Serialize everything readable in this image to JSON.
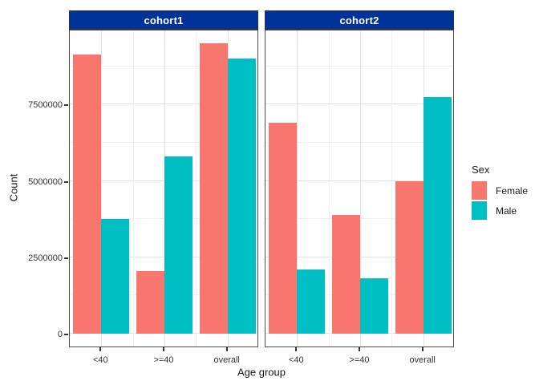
{
  "chart_data": {
    "type": "bar",
    "categories": [
      "<40",
      ">=40",
      "overall"
    ],
    "facets": [
      {
        "label": "cohort1",
        "series": [
          {
            "name": "Female",
            "values": [
              9150000,
              2050000,
              9500000
            ]
          },
          {
            "name": "Male",
            "values": [
              3750000,
              5800000,
              9000000
            ]
          }
        ]
      },
      {
        "label": "cohort2",
        "series": [
          {
            "name": "Female",
            "values": [
              6900000,
              3900000,
              5000000
            ]
          },
          {
            "name": "Male",
            "values": [
              2100000,
              1800000,
              7750000
            ]
          }
        ]
      }
    ],
    "xlabel": "Age group",
    "ylabel": "Count",
    "y_ticks": [
      0,
      2500000,
      5000000,
      7500000
    ],
    "y_tick_labels": [
      "0",
      "2500000",
      "5000000",
      "7500000"
    ],
    "ylim": [
      -475000,
      9975000
    ],
    "grid": {
      "major": true,
      "minor": true
    },
    "legend": {
      "title": "Sex",
      "position": "right",
      "entries": [
        {
          "label": "Female",
          "color": "#F8766D"
        },
        {
          "label": "Male",
          "color": "#00BFC4"
        }
      ]
    },
    "theme": {
      "background": "#FFFFFF",
      "strip_background": "#003399",
      "strip_border": "#333333",
      "strip_text_color": "#FFFFFF",
      "panel_background": "#FFFFFF",
      "panel_border": "#4D4D4D",
      "grid_major_color": "#E2E2E2",
      "grid_minor_color": "#F0F0F0",
      "tick_color": "#333333",
      "axis_text_color": "#333333",
      "axis_title_color": "#1A1A1A"
    }
  }
}
